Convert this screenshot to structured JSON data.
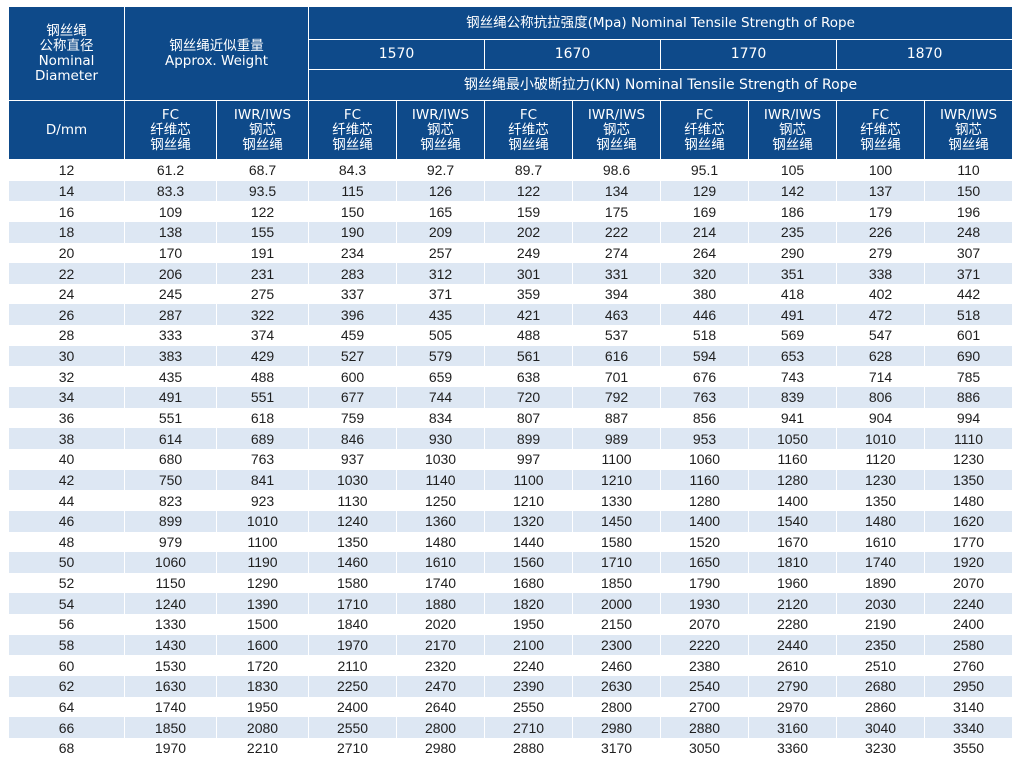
{
  "header": {
    "diameter_lines": [
      "钢丝绳",
      "公称直径",
      "Nominal",
      "Diameter"
    ],
    "weight_lines": [
      "钢丝绳近似重量",
      "Approx. Weight"
    ],
    "tensile_title": "钢丝绳公称抗拉强度(Mpa) Nominal Tensile Strength of Rope",
    "grades": [
      "1570",
      "1670",
      "1770",
      "1870"
    ],
    "breaking_title": "钢丝绳最小破断拉力(KN) Nominal Tensile Strength of Rope",
    "unit_label": "D/mm",
    "fc_lines": [
      "FC",
      "纤维芯",
      "钢丝绳"
    ],
    "iwr_lines": [
      "IWR/IWS",
      "钢芯",
      "钢丝绳"
    ]
  },
  "rows": [
    [
      "12",
      "61.2",
      "68.7",
      "84.3",
      "92.7",
      "89.7",
      "98.6",
      "95.1",
      "105",
      "100",
      "110"
    ],
    [
      "14",
      "83.3",
      "93.5",
      "115",
      "126",
      "122",
      "134",
      "129",
      "142",
      "137",
      "150"
    ],
    [
      "16",
      "109",
      "122",
      "150",
      "165",
      "159",
      "175",
      "169",
      "186",
      "179",
      "196"
    ],
    [
      "18",
      "138",
      "155",
      "190",
      "209",
      "202",
      "222",
      "214",
      "235",
      "226",
      "248"
    ],
    [
      "20",
      "170",
      "191",
      "234",
      "257",
      "249",
      "274",
      "264",
      "290",
      "279",
      "307"
    ],
    [
      "22",
      "206",
      "231",
      "283",
      "312",
      "301",
      "331",
      "320",
      "351",
      "338",
      "371"
    ],
    [
      "24",
      "245",
      "275",
      "337",
      "371",
      "359",
      "394",
      "380",
      "418",
      "402",
      "442"
    ],
    [
      "26",
      "287",
      "322",
      "396",
      "435",
      "421",
      "463",
      "446",
      "491",
      "472",
      "518"
    ],
    [
      "28",
      "333",
      "374",
      "459",
      "505",
      "488",
      "537",
      "518",
      "569",
      "547",
      "601"
    ],
    [
      "30",
      "383",
      "429",
      "527",
      "579",
      "561",
      "616",
      "594",
      "653",
      "628",
      "690"
    ],
    [
      "32",
      "435",
      "488",
      "600",
      "659",
      "638",
      "701",
      "676",
      "743",
      "714",
      "785"
    ],
    [
      "34",
      "491",
      "551",
      "677",
      "744",
      "720",
      "792",
      "763",
      "839",
      "806",
      "886"
    ],
    [
      "36",
      "551",
      "618",
      "759",
      "834",
      "807",
      "887",
      "856",
      "941",
      "904",
      "994"
    ],
    [
      "38",
      "614",
      "689",
      "846",
      "930",
      "899",
      "989",
      "953",
      "1050",
      "1010",
      "1110"
    ],
    [
      "40",
      "680",
      "763",
      "937",
      "1030",
      "997",
      "1100",
      "1060",
      "1160",
      "1120",
      "1230"
    ],
    [
      "42",
      "750",
      "841",
      "1030",
      "1140",
      "1100",
      "1210",
      "1160",
      "1280",
      "1230",
      "1350"
    ],
    [
      "44",
      "823",
      "923",
      "1130",
      "1250",
      "1210",
      "1330",
      "1280",
      "1400",
      "1350",
      "1480"
    ],
    [
      "46",
      "899",
      "1010",
      "1240",
      "1360",
      "1320",
      "1450",
      "1400",
      "1540",
      "1480",
      "1620"
    ],
    [
      "48",
      "979",
      "1100",
      "1350",
      "1480",
      "1440",
      "1580",
      "1520",
      "1670",
      "1610",
      "1770"
    ],
    [
      "50",
      "1060",
      "1190",
      "1460",
      "1610",
      "1560",
      "1710",
      "1650",
      "1810",
      "1740",
      "1920"
    ],
    [
      "52",
      "1150",
      "1290",
      "1580",
      "1740",
      "1680",
      "1850",
      "1790",
      "1960",
      "1890",
      "2070"
    ],
    [
      "54",
      "1240",
      "1390",
      "1710",
      "1880",
      "1820",
      "2000",
      "1930",
      "2120",
      "2030",
      "2240"
    ],
    [
      "56",
      "1330",
      "1500",
      "1840",
      "2020",
      "1950",
      "2150",
      "2070",
      "2280",
      "2190",
      "2400"
    ],
    [
      "58",
      "1430",
      "1600",
      "1970",
      "2170",
      "2100",
      "2300",
      "2220",
      "2440",
      "2350",
      "2580"
    ],
    [
      "60",
      "1530",
      "1720",
      "2110",
      "2320",
      "2240",
      "2460",
      "2380",
      "2610",
      "2510",
      "2760"
    ],
    [
      "62",
      "1630",
      "1830",
      "2250",
      "2470",
      "2390",
      "2630",
      "2540",
      "2790",
      "2680",
      "2950"
    ],
    [
      "64",
      "1740",
      "1950",
      "2400",
      "2640",
      "2550",
      "2800",
      "2700",
      "2970",
      "2860",
      "3140"
    ],
    [
      "66",
      "1850",
      "2080",
      "2550",
      "2800",
      "2710",
      "2980",
      "2880",
      "3160",
      "3040",
      "3340"
    ],
    [
      "68",
      "1970",
      "2210",
      "2710",
      "2980",
      "2880",
      "3170",
      "3050",
      "3360",
      "3230",
      "3550"
    ]
  ]
}
